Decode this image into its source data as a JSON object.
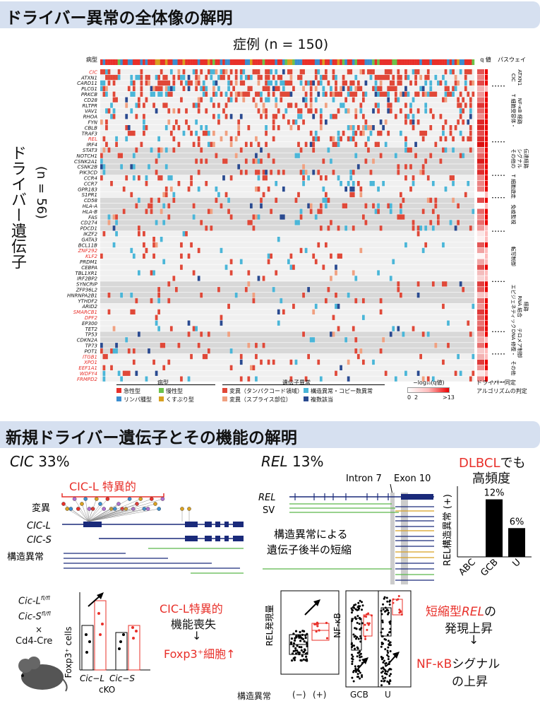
{
  "section1": {
    "title": "ドライバー異常の全体像の解明",
    "cases_label": "症例 (n = 150)",
    "y_label": "ドライバー遺伝子",
    "y_n": "(n = 56)",
    "track_label": "病型",
    "qval_label": "q 値",
    "pathway_label": "パスウェイ",
    "genes": [
      {
        "name": "CIC",
        "red": true
      },
      {
        "name": "ATXN1"
      },
      {
        "name": "CARD11"
      },
      {
        "name": "PLCG1"
      },
      {
        "name": "PRKCB"
      },
      {
        "name": "CD28"
      },
      {
        "name": "RLTPR"
      },
      {
        "name": "VAV1"
      },
      {
        "name": "RHOA"
      },
      {
        "name": "FYN"
      },
      {
        "name": "CBLB"
      },
      {
        "name": "TRAF3"
      },
      {
        "name": "REL",
        "red": true
      },
      {
        "name": "IRF4"
      },
      {
        "name": "STAT3"
      },
      {
        "name": "NOTCH1"
      },
      {
        "name": "CSNK2A1"
      },
      {
        "name": "CSNK2B"
      },
      {
        "name": "PIK3CD"
      },
      {
        "name": "CCR4"
      },
      {
        "name": "CCR7"
      },
      {
        "name": "GPR183"
      },
      {
        "name": "S1PR1"
      },
      {
        "name": "CD58"
      },
      {
        "name": "HLA-A"
      },
      {
        "name": "HLA-B"
      },
      {
        "name": "FAS"
      },
      {
        "name": "CD274"
      },
      {
        "name": "PDCD1"
      },
      {
        "name": "IKZF2"
      },
      {
        "name": "GATA3"
      },
      {
        "name": "BCL11B"
      },
      {
        "name": "ZNF292",
        "red": true
      },
      {
        "name": "KLF2",
        "red": true
      },
      {
        "name": "PRDM1"
      },
      {
        "name": "CEBPA"
      },
      {
        "name": "TBL1XR1"
      },
      {
        "name": "IRF2BP2"
      },
      {
        "name": "SYNCRIP"
      },
      {
        "name": "ZFP36L2"
      },
      {
        "name": "HNRNPA2B1"
      },
      {
        "name": "YTHDF2"
      },
      {
        "name": "ARID2"
      },
      {
        "name": "SMARCB1",
        "red": true
      },
      {
        "name": "DPF2",
        "red": true
      },
      {
        "name": "EP300"
      },
      {
        "name": "TET2"
      },
      {
        "name": "TP53"
      },
      {
        "name": "CDKN2A"
      },
      {
        "name": "TP73"
      },
      {
        "name": "POT1"
      },
      {
        "name": "ITGB1",
        "red": true
      },
      {
        "name": "XPO1",
        "red": true
      },
      {
        "name": "EEF1A1",
        "red": true
      },
      {
        "name": "WDFY4",
        "red": true
      },
      {
        "name": "FRMPD2",
        "red": true
      }
    ],
    "pathways": [
      "CIC\nATXN1",
      "T 細胞受容体・\nNF-κB 経路",
      "その他の\nシグナル\n伝達経路",
      "T 細胞遊走",
      "免疫監視",
      "転写制御",
      "エピジェネティック\nRNA 結合\n経路",
      "DNA 修復・\nテロメア制御",
      "その他"
    ],
    "legend": {
      "subtype_title": "病型",
      "subtypes": [
        {
          "label": "急性型",
          "color": "#e8302a"
        },
        {
          "label": "リンパ腫型",
          "color": "#3b8ed0"
        },
        {
          "label": "慢性型",
          "color": "#6cc24a"
        },
        {
          "label": "くすぶり型",
          "color": "#d8a020"
        }
      ],
      "alteration_title": "遺伝子異常",
      "alterations": [
        {
          "label": "変異（タンパクコード領域）",
          "color": "#e04838"
        },
        {
          "label": "構造異常・コピー数異常",
          "color": "#4ab6d8"
        },
        {
          "label": "変異（スプライス部位）",
          "color": "#f0a080"
        },
        {
          "label": "複数該当",
          "color": "#2a4a90"
        }
      ],
      "q_title": "−log₁₀(q値)",
      "q_min": "0",
      "q_mid": "2",
      "q_max": ">13",
      "note1": "ドライバー同定",
      "note2": "アルゴリズムの判定"
    }
  },
  "section2": {
    "title": "新規ドライバー遺伝子とその機能の解明",
    "cic_gene": "CIC",
    "cic_pct": "33%",
    "cicl_specific": "CIC-L 特異的",
    "mut_label": "変異",
    "cicl": "CIC-L",
    "cics": "CIC-S",
    "sv_label": "構造異常",
    "mouse1": "Cic-L",
    "mouse1_sup": "fl/fl",
    "mouse2": "Cic-S",
    "mouse2_sup": "fl/fl",
    "cross": "×",
    "cre": "Cd4-Cre",
    "foxp3_axis": "Foxp3⁺ cells",
    "ko1": "Cic−L",
    "ko2": "Cic−S",
    "cko": "cKO",
    "cicl_loss1": "CIC-L特異的",
    "cicl_loss2": "機能喪失",
    "arrow": "↓",
    "foxp3_up": "Foxp3⁺細胞↑",
    "rel_gene": "REL",
    "rel_pct": "13%",
    "intron": "Intron 7",
    "exon": "Exon 10",
    "rel_label": "REL",
    "sv": "SV",
    "trunc1": "構造異常による",
    "trunc2": "遺伝子後半の短縮",
    "expr_axis": "REL発現量",
    "sv_axis": "構造異常",
    "neg": "(−)",
    "pos": "(+)",
    "nfkb_axis": "NF-κB",
    "gcb": "GCB",
    "u": "U",
    "dlbcl1": "DLBCL",
    "dlbcl2": "でも",
    "dlbcl3": "高頻度",
    "bar_ylabel": "REL構造異常 (+)",
    "bar_chart": {
      "type": "bar",
      "categories": [
        "ABC",
        "GCB",
        "U"
      ],
      "values": [
        0,
        12,
        6
      ],
      "labels": [
        "",
        "12%",
        "6%"
      ]
    },
    "summary1a": "短縮型",
    "summary1b": "REL",
    "summary1c": "の",
    "summary2": "発現上昇",
    "summary3": "↓",
    "summary4a": "NF-κB",
    "summary4b": "シグナル",
    "summary5": "の上昇"
  }
}
